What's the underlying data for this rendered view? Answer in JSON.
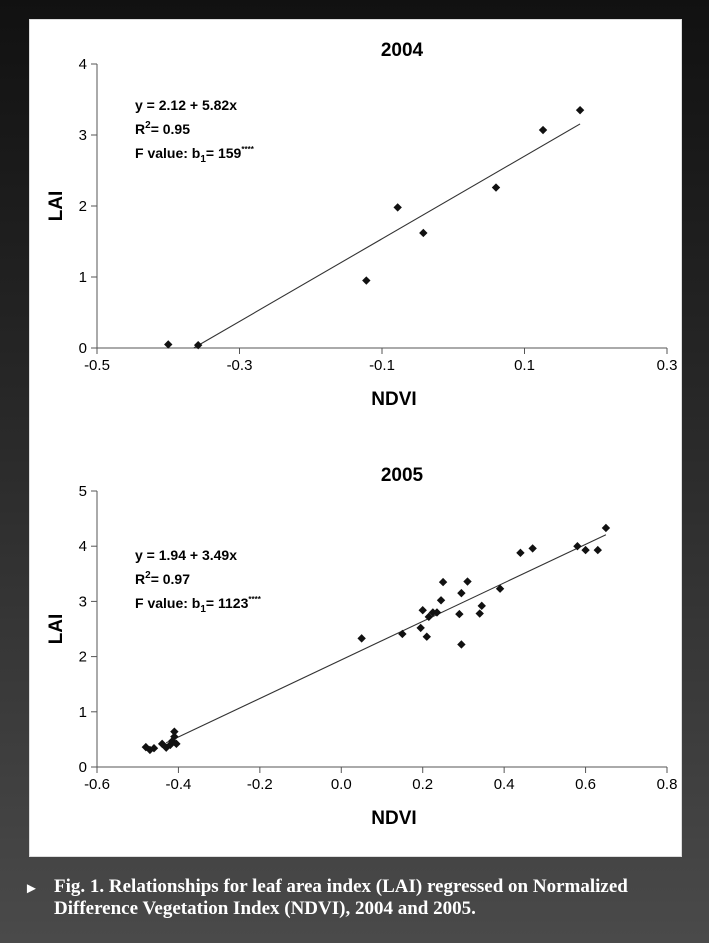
{
  "caption": "Fig. 1. Relationships for leaf area index (LAI) regressed on Normalized Difference Vegetation Index (NDVI), 2004 and 2005.",
  "caption_marker": "►",
  "chart_data": [
    {
      "type": "scatter",
      "title": "2004",
      "xlabel": "NDVI",
      "ylabel": "LAI",
      "xlim": [
        -0.5,
        0.3
      ],
      "ylim": [
        0,
        4
      ],
      "x_ticks": [
        -0.5,
        -0.3,
        -0.1,
        0.1,
        0.3
      ],
      "x_tick_labels": [
        "-0.5",
        "-0.3",
        "-0.1",
        "0.1",
        "0.3"
      ],
      "y_ticks": [
        0,
        1,
        2,
        3,
        4
      ],
      "y_tick_labels": [
        "0",
        "1",
        "2",
        "3",
        "4"
      ],
      "grid": false,
      "annotations": {
        "equation": "y = 2.12 + 5.82x",
        "r2_prefix": "R",
        "r2_sup": "2",
        "r2_value": "= 0.95",
        "f_prefix": "F value: b",
        "f_sub": "1",
        "f_value": "= 159",
        "f_sig": "****"
      },
      "fit": {
        "intercept": 2.12,
        "slope": 5.82,
        "x_range": [
          -0.364,
          0.178
        ]
      },
      "points": [
        {
          "x": -0.4,
          "y": 0.05
        },
        {
          "x": -0.358,
          "y": 0.04
        },
        {
          "x": -0.122,
          "y": 0.95
        },
        {
          "x": -0.078,
          "y": 1.98
        },
        {
          "x": -0.042,
          "y": 1.62
        },
        {
          "x": 0.06,
          "y": 2.26
        },
        {
          "x": 0.126,
          "y": 3.07
        },
        {
          "x": 0.178,
          "y": 3.35
        }
      ]
    },
    {
      "type": "scatter",
      "title": "2005",
      "xlabel": "NDVI",
      "ylabel": "LAI",
      "xlim": [
        -0.6,
        0.8
      ],
      "ylim": [
        0,
        5
      ],
      "x_ticks": [
        -0.6,
        -0.4,
        -0.2,
        0.0,
        0.2,
        0.4,
        0.6,
        0.8
      ],
      "x_tick_labels": [
        "-0.6",
        "-0.4",
        "-0.2",
        "0.0",
        "0.2",
        "0.4",
        "0.6",
        "0.8"
      ],
      "y_ticks": [
        0,
        1,
        2,
        3,
        4,
        5
      ],
      "y_tick_labels": [
        "0",
        "1",
        "2",
        "3",
        "4",
        "5"
      ],
      "grid": false,
      "annotations": {
        "equation": "y = 1.94 + 3.49x",
        "r2_prefix": "R",
        "r2_sup": "2",
        "r2_value": "= 0.97",
        "f_prefix": "F value: b",
        "f_sub": "1",
        "f_value": "= 1123",
        "f_sig": "****"
      },
      "fit": {
        "intercept": 1.94,
        "slope": 3.49,
        "x_range": [
          -0.43,
          0.65
        ]
      },
      "points": [
        {
          "x": -0.48,
          "y": 0.36
        },
        {
          "x": -0.47,
          "y": 0.31
        },
        {
          "x": -0.46,
          "y": 0.34
        },
        {
          "x": -0.44,
          "y": 0.42
        },
        {
          "x": -0.43,
          "y": 0.35
        },
        {
          "x": -0.42,
          "y": 0.4
        },
        {
          "x": -0.415,
          "y": 0.47
        },
        {
          "x": -0.41,
          "y": 0.55
        },
        {
          "x": -0.41,
          "y": 0.64
        },
        {
          "x": -0.405,
          "y": 0.42
        },
        {
          "x": 0.05,
          "y": 2.33
        },
        {
          "x": 0.15,
          "y": 2.41
        },
        {
          "x": 0.195,
          "y": 2.52
        },
        {
          "x": 0.2,
          "y": 2.84
        },
        {
          "x": 0.21,
          "y": 2.36
        },
        {
          "x": 0.215,
          "y": 2.72
        },
        {
          "x": 0.225,
          "y": 2.8
        },
        {
          "x": 0.235,
          "y": 2.8
        },
        {
          "x": 0.245,
          "y": 3.02
        },
        {
          "x": 0.25,
          "y": 3.35
        },
        {
          "x": 0.29,
          "y": 2.77
        },
        {
          "x": 0.295,
          "y": 3.15
        },
        {
          "x": 0.295,
          "y": 2.22
        },
        {
          "x": 0.31,
          "y": 3.36
        },
        {
          "x": 0.34,
          "y": 2.78
        },
        {
          "x": 0.345,
          "y": 2.92
        },
        {
          "x": 0.39,
          "y": 3.23
        },
        {
          "x": 0.44,
          "y": 3.88
        },
        {
          "x": 0.47,
          "y": 3.96
        },
        {
          "x": 0.58,
          "y": 4.0
        },
        {
          "x": 0.6,
          "y": 3.93
        },
        {
          "x": 0.63,
          "y": 3.93
        },
        {
          "x": 0.65,
          "y": 4.33
        }
      ]
    }
  ]
}
